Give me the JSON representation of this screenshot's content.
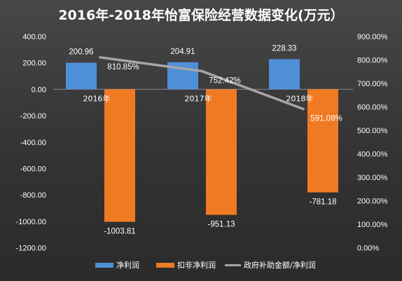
{
  "chart_data": {
    "type": "bar",
    "title": "2016年-2018年怡富保险经营数据变化(万元）",
    "categories": [
      "2016年",
      "2017年",
      "2018年"
    ],
    "series": [
      {
        "name": "净利润",
        "kind": "bar",
        "axis": "left",
        "color": "#4f8fd8",
        "values": [
          200.96,
          204.91,
          228.33
        ]
      },
      {
        "name": "扣非净利润",
        "kind": "bar",
        "axis": "left",
        "color": "#f07a22",
        "values": [
          -1003.81,
          -951.13,
          -781.18
        ]
      },
      {
        "name": "政府补助金额/净利润",
        "kind": "line",
        "axis": "right",
        "color": "#a6a6a6",
        "values": [
          810.85,
          752.42,
          591.08
        ],
        "unit": "%"
      }
    ],
    "y_left": {
      "min": -1200,
      "max": 400,
      "ticks": [
        "400.00",
        "200.00",
        "0.00",
        "-200.00",
        "-400.00",
        "-600.00",
        "-800.00",
        "-1000.00",
        "-1200.00"
      ]
    },
    "y_right": {
      "min": 0,
      "max": 900,
      "ticks": [
        "900.00%",
        "800.00%",
        "700.00%",
        "600.00%",
        "500.00%",
        "400.00%",
        "300.00%",
        "200.00%",
        "100.00%",
        "0.00%"
      ]
    },
    "bar_labels": [
      [
        "200.96",
        "204.91",
        "228.33"
      ],
      [
        "-1003.81",
        "-951.13",
        "-781.18"
      ]
    ],
    "line_labels": [
      "810.85%",
      "752.42%",
      "591.08%"
    ],
    "legend_position": "bottom",
    "grid": false
  }
}
